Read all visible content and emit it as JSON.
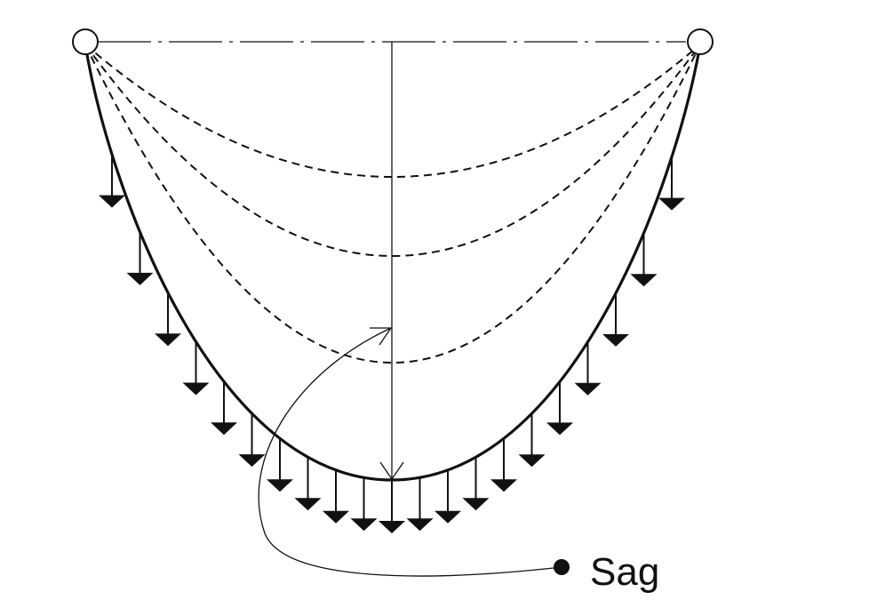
{
  "diagram": {
    "label": "Sag",
    "colors": {
      "line": "#111111",
      "background": "#ffffff"
    }
  }
}
